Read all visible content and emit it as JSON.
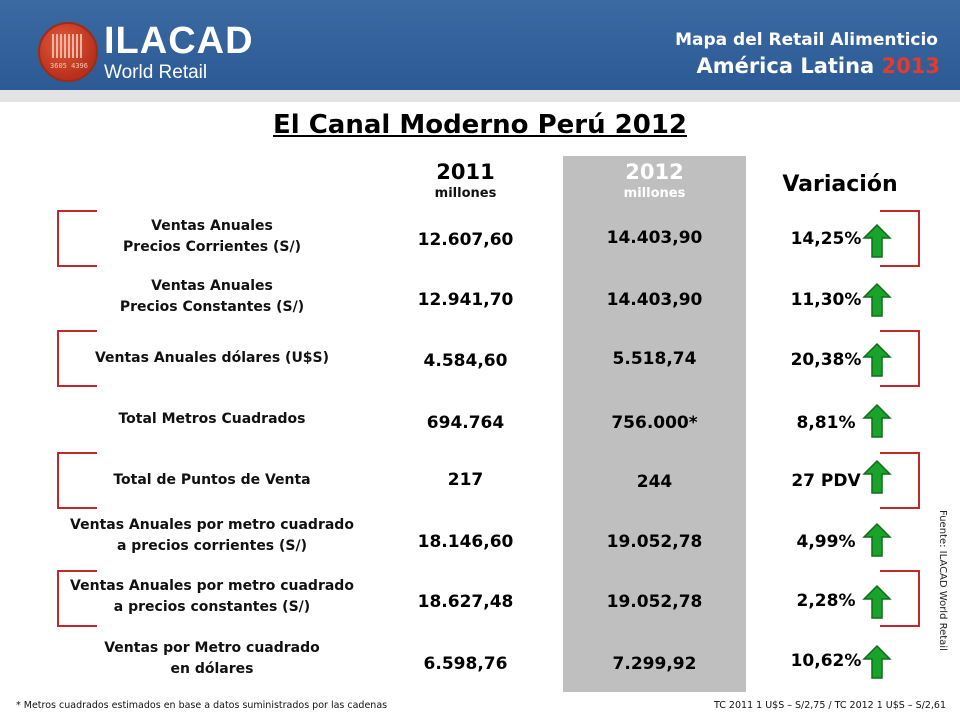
{
  "header": {
    "brand": "ILACAD",
    "brand_sub": "World Retail",
    "logo_digits": "3605 4396",
    "line1": "Mapa del Retail Alimenticio",
    "line2_prefix": "América Latina",
    "line2_year": "2013"
  },
  "title": "El Canal Moderno Perú 2012",
  "columns": {
    "col2011_year": "2011",
    "col2011_unit": "millones",
    "col2012_year": "2012",
    "col2012_unit": "millones",
    "variation": "Variación"
  },
  "rows": [
    {
      "l1": "Ventas Anuales",
      "l2": "Precios Corrientes  (S/)",
      "v2011": "12.607,60",
      "v2012": "14.403,90",
      "var": "14,25%"
    },
    {
      "l1": "Ventas Anuales",
      "l2": "Precios Constantes  (S/)",
      "v2011": "12.941,70",
      "v2012": "14.403,90",
      "var": "11,30%"
    },
    {
      "l1": "Ventas Anuales dólares  (U$S)",
      "l2": "",
      "v2011": "4.584,60",
      "v2012": "5.518,74",
      "var": "20,38%"
    },
    {
      "l1": "Total Metros Cuadrados",
      "l2": "",
      "v2011": "694.764",
      "v2012": "756.000*",
      "var": "8,81%"
    },
    {
      "l1": "Total de Puntos de Venta",
      "l2": "",
      "v2011": "217",
      "v2012": "244",
      "var": "27 PDV"
    },
    {
      "l1": "Ventas Anuales por metro cuadrado",
      "l2": "a precios corrientes (S/)",
      "v2011": "18.146,60",
      "v2012": "19.052,78",
      "var": "4,99%"
    },
    {
      "l1": "Ventas Anuales por metro cuadrado",
      "l2": "a precios constantes (S/)",
      "v2011": "18.627,48",
      "v2012": "19.052,78",
      "var": "2,28%"
    },
    {
      "l1": "Ventas  por  Metro cuadrado",
      "l2": "en dólares",
      "v2011": "6.598,76",
      "v2012": "7.299,92",
      "var": "10,62%"
    }
  ],
  "side_note": "Fuente: ILACAD World Retail",
  "footer": {
    "left": "* Metros cuadrados estimados en base a datos suministrados por las cadenas",
    "right": "TC 2011 1 U$S – S/2,75 / TC 2012 1 U$S – S/2,61"
  },
  "colors": {
    "header_blue": "#2c5a94",
    "bracket_red": "#c0282a",
    "arrow_green": "#1aa32a",
    "highlight_gray": "#bfbfbf",
    "year_red": "#e8392b"
  },
  "icons": {
    "variation_arrow": "up-arrow-icon"
  }
}
